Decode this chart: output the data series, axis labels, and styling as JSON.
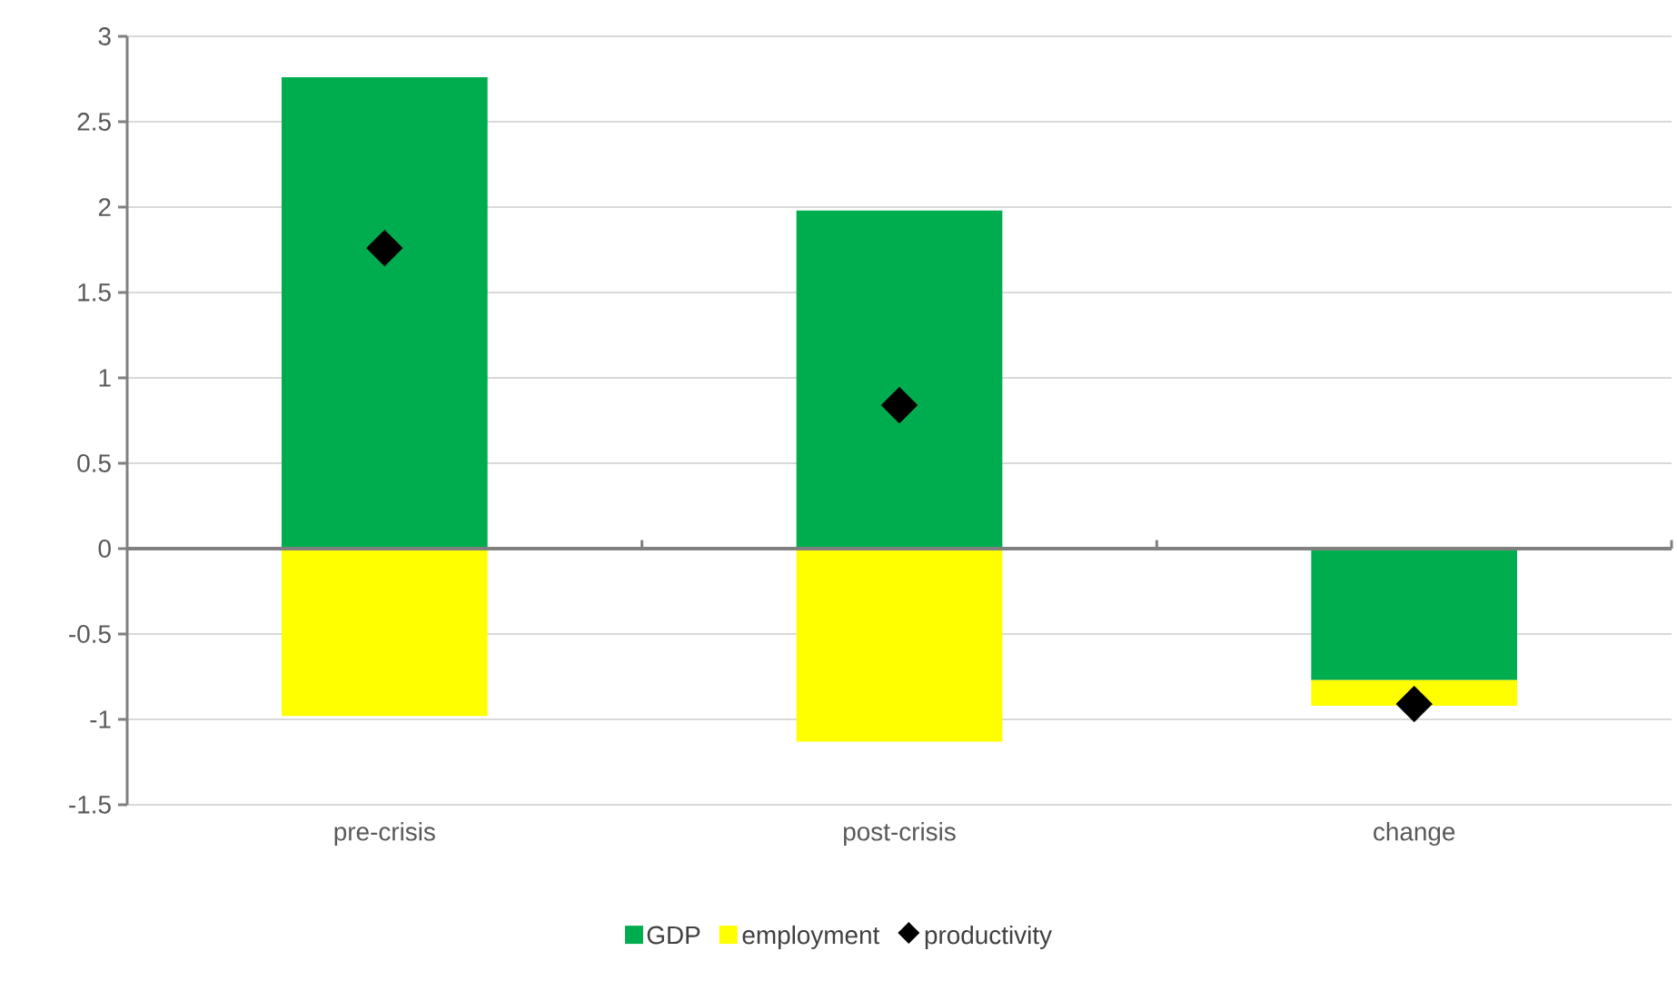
{
  "chart_data": {
    "type": "bar",
    "stacked": true,
    "categories": [
      "pre-crisis",
      "post-crisis",
      "change"
    ],
    "series": [
      {
        "name": "GDP",
        "color": "#00ad4e",
        "values": [
          2.76,
          1.98,
          -0.77
        ]
      },
      {
        "name": "employment",
        "color": "#ffff00",
        "values": [
          -0.98,
          -1.13,
          -0.15
        ]
      },
      {
        "name": "productivity",
        "type": "scatter",
        "marker": "diamond",
        "color": "#000000",
        "values": [
          1.76,
          0.84,
          -0.91
        ]
      }
    ],
    "ylim": [
      -1.5,
      3
    ],
    "yticks": [
      -1.5,
      -1,
      -0.5,
      0,
      0.5,
      1,
      1.5,
      2,
      2.5,
      3
    ],
    "grid": "y",
    "legend": "bottom"
  }
}
